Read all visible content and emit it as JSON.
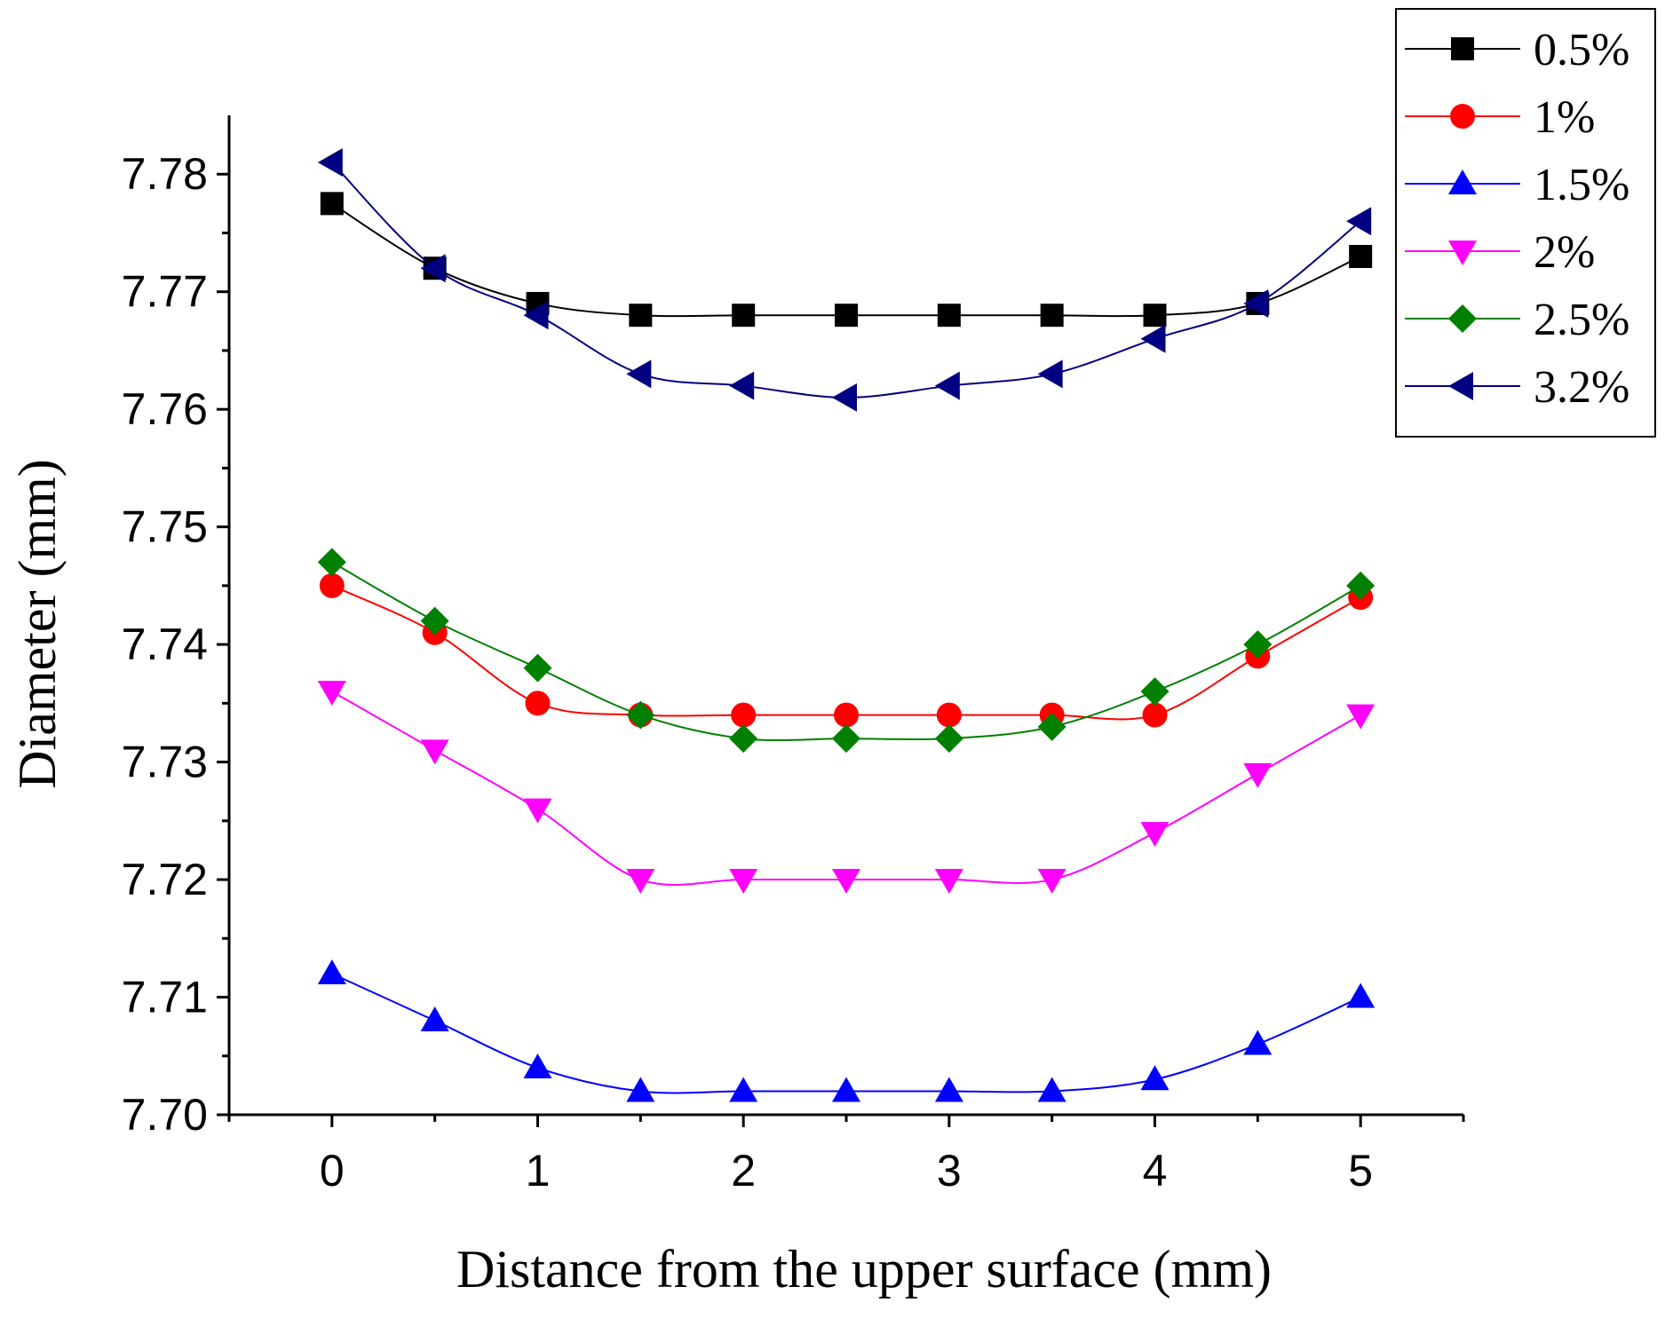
{
  "chart_data": {
    "type": "line",
    "title": "",
    "xlabel": "Distance from the upper surface (mm)",
    "ylabel": "Diameter (mm)",
    "xlim": [
      -0.5,
      5.5
    ],
    "ylim": [
      7.7,
      7.785
    ],
    "x_ticks": [
      0,
      1,
      2,
      3,
      4,
      5
    ],
    "x_tick_labels": [
      "0",
      "1",
      "2",
      "3",
      "4",
      "5"
    ],
    "y_ticks": [
      7.7,
      7.71,
      7.72,
      7.73,
      7.74,
      7.75,
      7.76,
      7.77,
      7.78
    ],
    "y_tick_labels": [
      "7.70",
      "7.71",
      "7.72",
      "7.73",
      "7.74",
      "7.75",
      "7.76",
      "7.77",
      "7.78"
    ],
    "legend_position": "top-right",
    "x": [
      0,
      0.5,
      1,
      1.5,
      2,
      2.5,
      3,
      3.5,
      4,
      4.5,
      5
    ],
    "series": [
      {
        "name": "0.5%",
        "color": "#000000",
        "marker": "square",
        "values": [
          7.7775,
          7.772,
          7.769,
          7.768,
          7.768,
          7.768,
          7.768,
          7.768,
          7.768,
          7.769,
          7.773
        ]
      },
      {
        "name": "1%",
        "color": "#ff0000",
        "marker": "circle",
        "values": [
          7.745,
          7.741,
          7.735,
          7.734,
          7.734,
          7.734,
          7.734,
          7.734,
          7.734,
          7.739,
          7.744
        ]
      },
      {
        "name": "1.5%",
        "color": "#0000ff",
        "marker": "triangle-up",
        "values": [
          7.712,
          7.708,
          7.704,
          7.702,
          7.702,
          7.702,
          7.702,
          7.702,
          7.703,
          7.706,
          7.71
        ]
      },
      {
        "name": "2%",
        "color": "#ff00ff",
        "marker": "triangle-down",
        "values": [
          7.736,
          7.731,
          7.726,
          7.72,
          7.72,
          7.72,
          7.72,
          7.72,
          7.724,
          7.729,
          7.734
        ]
      },
      {
        "name": "2.5%",
        "color": "#008000",
        "marker": "diamond",
        "values": [
          7.747,
          7.742,
          7.738,
          7.734,
          7.732,
          7.732,
          7.732,
          7.733,
          7.736,
          7.74,
          7.745
        ]
      },
      {
        "name": "3.2%",
        "color": "#000080",
        "marker": "triangle-left",
        "values": [
          7.781,
          7.772,
          7.768,
          7.763,
          7.762,
          7.761,
          7.762,
          7.763,
          7.766,
          7.769,
          7.776
        ]
      }
    ]
  }
}
